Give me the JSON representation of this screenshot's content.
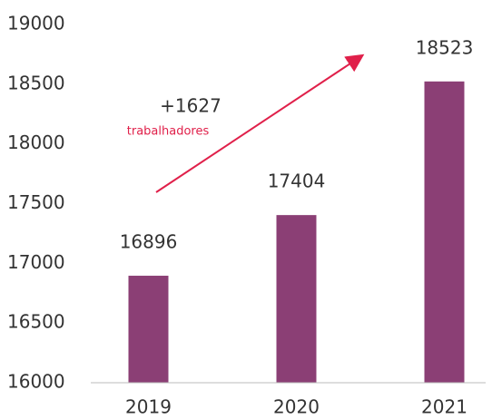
{
  "chart_data": {
    "type": "bar",
    "categories": [
      "2019",
      "2020",
      "2021"
    ],
    "values": [
      16896,
      17404,
      18523
    ],
    "color": "#8b3f75",
    "ylim": [
      16000,
      19000
    ],
    "yticks": [
      16000,
      16500,
      17000,
      17500,
      18000,
      18500,
      19000
    ],
    "grid": false,
    "annotations": [
      {
        "text": "+1627"
      },
      {
        "text": "trabalhadores",
        "color": "#e0204a"
      }
    ]
  }
}
